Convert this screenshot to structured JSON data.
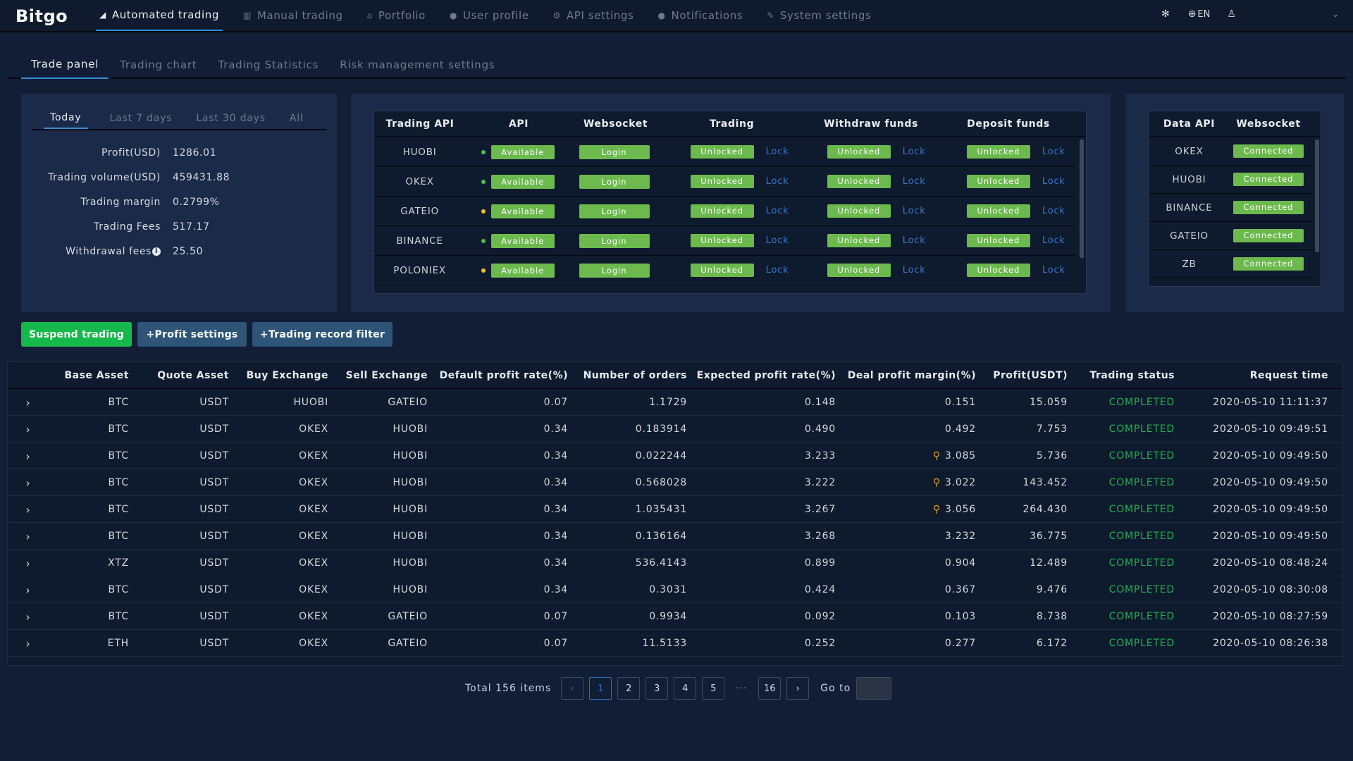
{
  "app": {
    "logo": "Bitgo"
  },
  "topnav": [
    {
      "label": "Automated trading",
      "icon": "send-icon",
      "glyph": "◢",
      "active": true
    },
    {
      "label": "Manual trading",
      "icon": "chart-icon",
      "glyph": "▥",
      "active": false
    },
    {
      "label": "Portfolio",
      "icon": "bank-icon",
      "glyph": "⌂",
      "active": false
    },
    {
      "label": "User profile",
      "icon": "user-icon",
      "glyph": "●",
      "active": false
    },
    {
      "label": "API settings",
      "icon": "gears-icon",
      "glyph": "⚙",
      "active": false
    },
    {
      "label": "Notifications",
      "icon": "chat-icon",
      "glyph": "●",
      "active": false
    },
    {
      "label": "System settings",
      "icon": "wrench-icon",
      "glyph": "✎",
      "active": false
    }
  ],
  "topright": {
    "settings_glyph": "✻",
    "globe_glyph": "⊕",
    "language": "EN",
    "user_glyph": "♙",
    "chevron_glyph": "⌄"
  },
  "subtabs": [
    {
      "label": "Trade panel",
      "active": true
    },
    {
      "label": "Trading chart",
      "active": false
    },
    {
      "label": "Trading Statistics",
      "active": false
    },
    {
      "label": "Risk management settings",
      "active": false
    }
  ],
  "period_tabs": [
    {
      "label": "Today",
      "active": true
    },
    {
      "label": "Last 7 days",
      "active": false
    },
    {
      "label": "Last 30 days",
      "active": false
    },
    {
      "label": "All",
      "active": false
    }
  ],
  "stats": [
    {
      "label": "Profit(USD)",
      "value": "1286.01",
      "info": false
    },
    {
      "label": "Trading volume(USD)",
      "value": "459431.88",
      "info": false
    },
    {
      "label": "Trading margin",
      "value": "0.2799%",
      "info": false
    },
    {
      "label": "Trading Fees",
      "value": "517.17",
      "info": false
    },
    {
      "label": "Withdrawal fees",
      "value": "25.50",
      "info": true,
      "info_glyph": "i"
    }
  ],
  "trading_api": {
    "headers": [
      "Trading API",
      "API",
      "Websocket",
      "Trading",
      "Withdraw funds",
      "Deposit funds"
    ],
    "rows": [
      {
        "name": "HUOBI",
        "dot_color": "#4fc24a",
        "api": "Available",
        "ws": "Login",
        "trading": "Unlocked",
        "withdraw": "Unlocked",
        "deposit": "Unlocked",
        "lock": "Lock"
      },
      {
        "name": "OKEX",
        "dot_color": "#4fc24a",
        "api": "Available",
        "ws": "Login",
        "trading": "Unlocked",
        "withdraw": "Unlocked",
        "deposit": "Unlocked",
        "lock": "Lock"
      },
      {
        "name": "GATEIO",
        "dot_color": "#f2c12e",
        "api": "Available",
        "ws": "Login",
        "trading": "Unlocked",
        "withdraw": "Unlocked",
        "deposit": "Unlocked",
        "lock": "Lock"
      },
      {
        "name": "BINANCE",
        "dot_color": "#4fc24a",
        "api": "Available",
        "ws": "Login",
        "trading": "Unlocked",
        "withdraw": "Unlocked",
        "deposit": "Unlocked",
        "lock": "Lock"
      },
      {
        "name": "POLONIEX",
        "dot_color": "#f2c12e",
        "api": "Available",
        "ws": "Login",
        "trading": "Unlocked",
        "withdraw": "Unlocked",
        "deposit": "Unlocked",
        "lock": "Lock"
      }
    ]
  },
  "data_api": {
    "headers": [
      "Data API",
      "Websocket"
    ],
    "rows": [
      {
        "name": "OKEX",
        "status": "Connected"
      },
      {
        "name": "HUOBI",
        "status": "Connected"
      },
      {
        "name": "BINANCE",
        "status": "Connected"
      },
      {
        "name": "GATEIO",
        "status": "Connected"
      },
      {
        "name": "ZB",
        "status": "Connected"
      }
    ]
  },
  "actions": {
    "suspend": "Suspend trading",
    "profit_settings": "+Profit settings",
    "record_filter": "+Trading record filter"
  },
  "records": {
    "headers": [
      "Base Asset",
      "Quote Asset",
      "Buy Exchange",
      "Sell Exchange",
      "Default profit rate(%)",
      "Number of orders",
      "Expected profit rate(%)",
      "Deal profit margin(%)",
      "Profit(USDT)",
      "Trading status",
      "Request time"
    ],
    "expand_glyph": "›",
    "warn_glyph": "⚲",
    "rows": [
      {
        "base": "BTC",
        "quote": "USDT",
        "buy": "HUOBI",
        "sell": "GATEIO",
        "default_rate": "0.07",
        "orders": "1.1729",
        "expected": "0.148",
        "deal": "0.151",
        "warn": false,
        "profit": "15.059",
        "status": "COMPLETED",
        "time": "2020-05-10 11:11:37"
      },
      {
        "base": "BTC",
        "quote": "USDT",
        "buy": "OKEX",
        "sell": "HUOBI",
        "default_rate": "0.34",
        "orders": "0.183914",
        "expected": "0.490",
        "deal": "0.492",
        "warn": false,
        "profit": "7.753",
        "status": "COMPLETED",
        "time": "2020-05-10 09:49:51"
      },
      {
        "base": "BTC",
        "quote": "USDT",
        "buy": "OKEX",
        "sell": "HUOBI",
        "default_rate": "0.34",
        "orders": "0.022244",
        "expected": "3.233",
        "deal": "3.085",
        "warn": true,
        "profit": "5.736",
        "status": "COMPLETED",
        "time": "2020-05-10 09:49:50"
      },
      {
        "base": "BTC",
        "quote": "USDT",
        "buy": "OKEX",
        "sell": "HUOBI",
        "default_rate": "0.34",
        "orders": "0.568028",
        "expected": "3.222",
        "deal": "3.022",
        "warn": true,
        "profit": "143.452",
        "status": "COMPLETED",
        "time": "2020-05-10 09:49:50"
      },
      {
        "base": "BTC",
        "quote": "USDT",
        "buy": "OKEX",
        "sell": "HUOBI",
        "default_rate": "0.34",
        "orders": "1.035431",
        "expected": "3.267",
        "deal": "3.056",
        "warn": true,
        "profit": "264.430",
        "status": "COMPLETED",
        "time": "2020-05-10 09:49:50"
      },
      {
        "base": "BTC",
        "quote": "USDT",
        "buy": "OKEX",
        "sell": "HUOBI",
        "default_rate": "0.34",
        "orders": "0.136164",
        "expected": "3.268",
        "deal": "3.232",
        "warn": false,
        "profit": "36.775",
        "status": "COMPLETED",
        "time": "2020-05-10 09:49:50"
      },
      {
        "base": "XTZ",
        "quote": "USDT",
        "buy": "OKEX",
        "sell": "HUOBI",
        "default_rate": "0.34",
        "orders": "536.4143",
        "expected": "0.899",
        "deal": "0.904",
        "warn": false,
        "profit": "12.489",
        "status": "COMPLETED",
        "time": "2020-05-10 08:48:24"
      },
      {
        "base": "BTC",
        "quote": "USDT",
        "buy": "OKEX",
        "sell": "HUOBI",
        "default_rate": "0.34",
        "orders": "0.3031",
        "expected": "0.424",
        "deal": "0.367",
        "warn": false,
        "profit": "9.476",
        "status": "COMPLETED",
        "time": "2020-05-10 08:30:08"
      },
      {
        "base": "BTC",
        "quote": "USDT",
        "buy": "OKEX",
        "sell": "GATEIO",
        "default_rate": "0.07",
        "orders": "0.9934",
        "expected": "0.092",
        "deal": "0.103",
        "warn": false,
        "profit": "8.738",
        "status": "COMPLETED",
        "time": "2020-05-10 08:27:59"
      },
      {
        "base": "ETH",
        "quote": "USDT",
        "buy": "OKEX",
        "sell": "GATEIO",
        "default_rate": "0.07",
        "orders": "11.5133",
        "expected": "0.252",
        "deal": "0.277",
        "warn": false,
        "profit": "6.172",
        "status": "COMPLETED",
        "time": "2020-05-10 08:26:38"
      }
    ]
  },
  "pagination": {
    "total_text": "Total 156 items",
    "prev_glyph": "‹",
    "next_glyph": "›",
    "pages": [
      "1",
      "2",
      "3",
      "4",
      "5"
    ],
    "current": "1",
    "ellipsis": "···",
    "last": "16",
    "goto_label": "Go to"
  },
  "colors": {
    "background": "#121e35",
    "panel": "#1a2a48",
    "accent": "#2f8fd8",
    "button_green": "#6cb94e",
    "suspend_green": "#15b84a",
    "secondary_button": "#2e5478",
    "status_completed": "#1fb14f",
    "lock_link": "#3a78c8"
  }
}
